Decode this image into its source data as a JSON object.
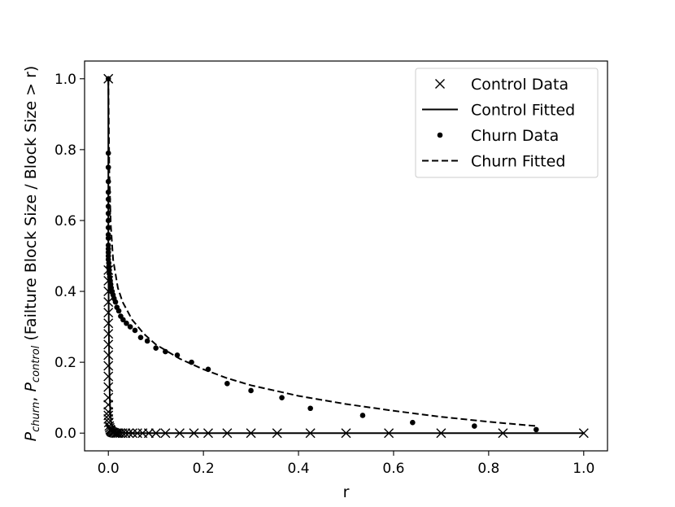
{
  "chart_data": {
    "type": "scatter",
    "xlabel": "r",
    "ylabel_parts": {
      "p1": "P",
      "s1": "churn",
      "sep": ", ",
      "p2": "P",
      "s2": "control",
      "rest": " (Failture Block Size / Block Size > r)"
    },
    "xlim": [
      -0.05,
      1.05
    ],
    "ylim": [
      -0.05,
      1.05
    ],
    "xticks": [
      0.0,
      0.2,
      0.4,
      0.6,
      0.8,
      1.0
    ],
    "xtick_labels": [
      "0.0",
      "0.2",
      "0.4",
      "0.6",
      "0.8",
      "1.0"
    ],
    "yticks": [
      0.0,
      0.2,
      0.4,
      0.6,
      0.8,
      1.0
    ],
    "ytick_labels": [
      "0.0",
      "0.2",
      "0.4",
      "0.6",
      "0.8",
      "1.0"
    ],
    "grid": false,
    "legend_position": "top-right",
    "series": [
      {
        "name": "Control Data",
        "style": "x-marker",
        "color": "#000000",
        "x": [
          0,
          0,
          0,
          0,
          0,
          0,
          0,
          0,
          0,
          0,
          0,
          0,
          0,
          0,
          0,
          0,
          0,
          0,
          0.001,
          0.002,
          0.003,
          0.004,
          0.005,
          0.006,
          0.008,
          0.01,
          0.012,
          0.015,
          0.018,
          0.021,
          0.025,
          0.03,
          0.036,
          0.043,
          0.051,
          0.061,
          0.072,
          0.085,
          0.1,
          0.12,
          0.15,
          0.18,
          0.21,
          0.25,
          0.3,
          0.355,
          0.425,
          0.5,
          0.59,
          0.7,
          0.83,
          1.0
        ],
        "y": [
          1.0,
          0.46,
          0.43,
          0.4,
          0.37,
          0.34,
          0.31,
          0.28,
          0.25,
          0.22,
          0.19,
          0.16,
          0.13,
          0.1,
          0.08,
          0.06,
          0.05,
          0.04,
          0.03,
          0.02,
          0.015,
          0.01,
          0.008,
          0.005,
          0.003,
          0.002,
          0.001,
          0,
          0,
          0,
          0,
          0,
          0,
          0,
          0,
          0,
          0,
          0,
          0,
          0,
          0,
          0,
          0,
          0,
          0,
          0,
          0,
          0,
          0,
          0,
          0,
          0
        ]
      },
      {
        "name": "Control Fitted",
        "style": "solid",
        "color": "#000000",
        "x": [
          0,
          0,
          0.001,
          0.002,
          0.003,
          0.004,
          0.006,
          0.01,
          0.02,
          0.05,
          0.1,
          0.2,
          0.4,
          0.6,
          0.8,
          1.0
        ],
        "y": [
          1.0,
          0.5,
          0.3,
          0.18,
          0.1,
          0.06,
          0.03,
          0.01,
          0.002,
          0,
          0,
          0,
          0,
          0,
          0,
          0
        ]
      },
      {
        "name": "Churn Data",
        "style": "dot",
        "color": "#000000",
        "x": [
          0,
          0,
          0,
          0,
          0,
          0,
          0,
          0,
          0,
          0,
          0,
          0,
          0,
          0,
          0,
          0,
          0,
          0.001,
          0.001,
          0.002,
          0.002,
          0.003,
          0.004,
          0.005,
          0.006,
          0.008,
          0.01,
          0.012,
          0.015,
          0.018,
          0.022,
          0.026,
          0.031,
          0.038,
          0.046,
          0.056,
          0.068,
          0.082,
          0.1,
          0.12,
          0.145,
          0.175,
          0.21,
          0.25,
          0.3,
          0.365,
          0.425,
          0.535,
          0.64,
          0.77,
          0.9
        ],
        "y": [
          1.0,
          0.79,
          0.75,
          0.71,
          0.68,
          0.66,
          0.64,
          0.62,
          0.6,
          0.58,
          0.56,
          0.55,
          0.53,
          0.52,
          0.51,
          0.5,
          0.49,
          0.48,
          0.47,
          0.46,
          0.45,
          0.44,
          0.43,
          0.42,
          0.41,
          0.4,
          0.39,
          0.38,
          0.37,
          0.355,
          0.345,
          0.33,
          0.32,
          0.31,
          0.3,
          0.29,
          0.27,
          0.26,
          0.24,
          0.23,
          0.22,
          0.2,
          0.18,
          0.14,
          0.12,
          0.1,
          0.07,
          0.05,
          0.03,
          0.02,
          0.01
        ]
      },
      {
        "name": "Churn Fitted",
        "style": "dashed",
        "color": "#000000",
        "x": [
          0.0,
          0.002,
          0.005,
          0.01,
          0.02,
          0.03,
          0.05,
          0.075,
          0.1,
          0.15,
          0.2,
          0.25,
          0.3,
          0.4,
          0.5,
          0.6,
          0.7,
          0.8,
          0.9
        ],
        "y": [
          1.0,
          0.74,
          0.59,
          0.49,
          0.41,
          0.37,
          0.32,
          0.28,
          0.25,
          0.21,
          0.18,
          0.155,
          0.135,
          0.105,
          0.082,
          0.063,
          0.046,
          0.032,
          0.02
        ]
      }
    ]
  }
}
